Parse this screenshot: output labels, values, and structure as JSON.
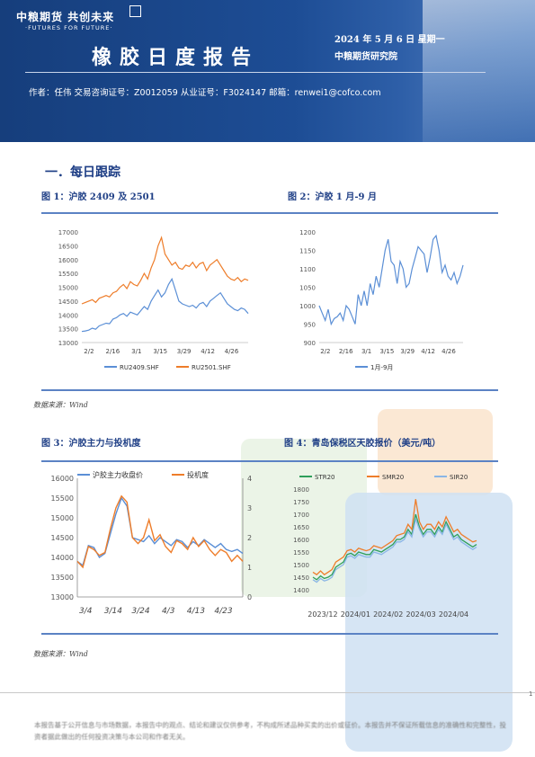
{
  "header": {
    "logo_text": "中粮期货 共创未来",
    "logo_sub": "·FUTURES FOR FUTURE·",
    "report_title": "橡胶日度报告",
    "date": "2024 年 5 月 6 日 星期一",
    "institute": "中粮期货研究院",
    "author_line": "作者：任伟    交易咨询证号：Z0012059    从业证号：F3024147    邮箱：renwei1@cofco.com"
  },
  "section_title": "一．每日跟踪",
  "figures": {
    "fig1_title": "图 1：沪胶 2409 及 2501",
    "fig2_title": "图 2：沪胶 1 月-9 月",
    "fig3_title": "图 3：沪胶主力与投机度",
    "fig4_title": "图 4：青岛保税区天胶报价（美元/吨）",
    "source1": "数据来源：Wind",
    "source2": "数据来源：Wind"
  },
  "footer": {
    "page_number": "1",
    "disclaimer": "本报告基于公开信息与市场数据，本报告中的观点、结论和建议仅供参考，不构成所述品种买卖的出价或征价。本报告并不保证所载信息的准确性和完整性，投资者据此做出的任何投资决策与本公司和作者无关。"
  },
  "colors": {
    "blue_series": "#5b8fd6",
    "orange_series": "#ee7d2a",
    "green_series": "#2e9e5b",
    "light_blue_series": "#8ab6e6",
    "accent": "#1f3f86"
  },
  "chart_data": [
    {
      "type": "line",
      "title": "图 1：沪胶 2409 及 2501",
      "x_ticks": [
        "2/2",
        "2/16",
        "3/1",
        "3/15",
        "3/29",
        "4/12",
        "4/26"
      ],
      "ylim": [
        13000,
        17000
      ],
      "y_ticks": [
        13000,
        13500,
        14000,
        14500,
        15000,
        15500,
        16000,
        16500,
        17000
      ],
      "series": [
        {
          "name": "RU2409.SHF",
          "values": [
            13400,
            13420,
            13450,
            13520,
            13480,
            13600,
            13650,
            13700,
            13680,
            13850,
            13900,
            14000,
            14050,
            13950,
            14100,
            14050,
            14000,
            14150,
            14300,
            14200,
            14500,
            14700,
            14900,
            14650,
            14800,
            15100,
            15300,
            14900,
            14500,
            14400,
            14350,
            14300,
            14350,
            14250,
            14400,
            14450,
            14300,
            14500,
            14600,
            14700,
            14800,
            14600,
            14400,
            14300,
            14200,
            14150,
            14250,
            14200,
            14050
          ]
        },
        {
          "name": "RU2501.SHF",
          "values": [
            14400,
            14450,
            14500,
            14550,
            14450,
            14600,
            14650,
            14700,
            14650,
            14800,
            14850,
            15000,
            15100,
            14950,
            15200,
            15100,
            15050,
            15250,
            15500,
            15300,
            15700,
            16000,
            16500,
            16800,
            16200,
            16000,
            15800,
            15900,
            15700,
            15650,
            15800,
            15750,
            15900,
            15700,
            15850,
            15900,
            15600,
            15800,
            15900,
            16000,
            15800,
            15600,
            15400,
            15300,
            15250,
            15350,
            15200,
            15300,
            15250
          ]
        }
      ]
    },
    {
      "type": "line",
      "title": "图 2：沪胶 1 月-9 月",
      "x_ticks": [
        "2/2",
        "2/16",
        "3/1",
        "3/15",
        "3/29",
        "4/12",
        "4/26"
      ],
      "ylim": [
        900,
        1200
      ],
      "y_ticks": [
        900,
        950,
        1000,
        1050,
        1100,
        1150,
        1200
      ],
      "series": [
        {
          "name": "1月-9月",
          "values": [
            1000,
            980,
            960,
            990,
            950,
            965,
            970,
            980,
            960,
            1000,
            990,
            970,
            950,
            1030,
            1000,
            1040,
            1000,
            1060,
            1030,
            1080,
            1050,
            1100,
            1150,
            1180,
            1120,
            1110,
            1060,
            1120,
            1100,
            1050,
            1060,
            1100,
            1130,
            1160,
            1150,
            1140,
            1090,
            1130,
            1180,
            1190,
            1150,
            1090,
            1110,
            1080,
            1070,
            1090,
            1060,
            1080,
            1110
          ]
        }
      ]
    },
    {
      "type": "line",
      "title": "图 3：沪胶主力与投机度",
      "x_ticks": [
        "3/4",
        "3/14",
        "3/24",
        "4/3",
        "4/13",
        "4/23"
      ],
      "ylim_left": [
        13000,
        16000
      ],
      "ylim_right": [
        0,
        4
      ],
      "y_ticks_left": [
        13000,
        13500,
        14000,
        14500,
        15000,
        15500,
        16000
      ],
      "y_ticks_right": [
        0,
        1,
        2,
        3,
        4
      ],
      "series": [
        {
          "name": "沪胶主力收盘价",
          "axis": "left",
          "values": [
            13900,
            13800,
            14300,
            14250,
            14000,
            14100,
            14600,
            15100,
            15500,
            15300,
            14500,
            14450,
            14400,
            14550,
            14350,
            14500,
            14400,
            14300,
            14450,
            14400,
            14250,
            14400,
            14300,
            14450,
            14350,
            14250,
            14350,
            14200,
            14150,
            14200,
            14100
          ]
        },
        {
          "name": "投机度",
          "axis": "right",
          "values": [
            1.2,
            1.0,
            1.7,
            1.6,
            1.4,
            1.5,
            2.3,
            3.0,
            3.4,
            3.2,
            2.0,
            1.8,
            2.0,
            2.6,
            1.9,
            2.1,
            1.7,
            1.5,
            1.9,
            1.8,
            1.6,
            2.0,
            1.7,
            1.9,
            1.6,
            1.4,
            1.6,
            1.5,
            1.2,
            1.4,
            1.2
          ]
        }
      ]
    },
    {
      "type": "line",
      "title": "图 4：青岛保税区天胶报价（美元/吨）",
      "x_ticks": [
        "2023/12",
        "2024/01",
        "2024/02",
        "2024/03",
        "2024/04"
      ],
      "ylim": [
        1400,
        1800
      ],
      "y_ticks": [
        1400,
        1450,
        1500,
        1550,
        1600,
        1650,
        1700,
        1750,
        1800
      ],
      "series": [
        {
          "name": "STR20",
          "values": [
            1450,
            1440,
            1455,
            1445,
            1450,
            1460,
            1490,
            1500,
            1510,
            1540,
            1545,
            1535,
            1550,
            1545,
            1540,
            1540,
            1560,
            1555,
            1550,
            1560,
            1570,
            1580,
            1600,
            1600,
            1610,
            1640,
            1620,
            1700,
            1650,
            1620,
            1640,
            1640,
            1620,
            1650,
            1630,
            1670,
            1640,
            1610,
            1620,
            1600,
            1590,
            1580,
            1570,
            1580
          ]
        },
        {
          "name": "SMR20",
          "values": [
            1470,
            1460,
            1475,
            1460,
            1470,
            1480,
            1510,
            1520,
            1530,
            1555,
            1560,
            1550,
            1565,
            1560,
            1555,
            1560,
            1575,
            1570,
            1565,
            1575,
            1585,
            1595,
            1615,
            1620,
            1625,
            1660,
            1640,
            1760,
            1670,
            1640,
            1660,
            1660,
            1640,
            1670,
            1650,
            1690,
            1660,
            1630,
            1640,
            1620,
            1610,
            1600,
            1590,
            1595
          ]
        },
        {
          "name": "SIR20",
          "values": [
            1440,
            1430,
            1445,
            1435,
            1440,
            1450,
            1480,
            1490,
            1500,
            1530,
            1535,
            1525,
            1540,
            1535,
            1530,
            1530,
            1550,
            1545,
            1540,
            1550,
            1560,
            1570,
            1590,
            1590,
            1600,
            1630,
            1610,
            1680,
            1640,
            1610,
            1630,
            1630,
            1610,
            1640,
            1620,
            1660,
            1630,
            1600,
            1610,
            1590,
            1580,
            1570,
            1560,
            1570
          ]
        }
      ]
    }
  ]
}
